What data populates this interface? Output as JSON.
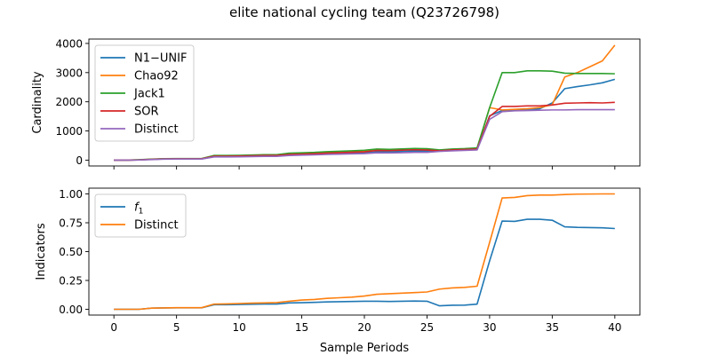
{
  "figure": {
    "title": "elite national cycling team (Q23726798)"
  },
  "chart_data": [
    {
      "type": "line",
      "ylabel": "Cardinality",
      "xlabel": "",
      "xlim": [
        -2,
        42
      ],
      "ylim": [
        -200,
        4150
      ],
      "xticks": [
        0,
        5,
        10,
        15,
        20,
        25,
        30,
        35,
        40
      ],
      "yticks": [
        0,
        1000,
        2000,
        3000,
        4000
      ],
      "ytick_labels": [
        "0",
        "1000",
        "2000",
        "3000",
        "4000"
      ],
      "legend_position": "top-left",
      "x": [
        0,
        1,
        2,
        3,
        4,
        5,
        6,
        7,
        8,
        9,
        10,
        11,
        12,
        13,
        14,
        15,
        16,
        17,
        18,
        19,
        20,
        21,
        22,
        23,
        24,
        25,
        26,
        27,
        28,
        29,
        30,
        31,
        32,
        33,
        34,
        35,
        36,
        37,
        38,
        39,
        40
      ],
      "series": [
        {
          "name": "N1−UNIF",
          "color": "#1f77b4",
          "values": [
            0,
            0,
            5,
            25,
            40,
            40,
            40,
            40,
            120,
            120,
            125,
            135,
            140,
            140,
            180,
            185,
            200,
            215,
            225,
            240,
            250,
            280,
            285,
            300,
            310,
            310,
            320,
            330,
            350,
            360,
            1520,
            1700,
            1720,
            1740,
            1760,
            1960,
            2450,
            2520,
            2580,
            2650,
            2770
          ]
        },
        {
          "name": "Chao92",
          "color": "#ff7f0e",
          "values": [
            0,
            0,
            10,
            30,
            45,
            50,
            50,
            50,
            150,
            150,
            155,
            165,
            175,
            175,
            215,
            225,
            240,
            260,
            275,
            290,
            305,
            350,
            345,
            360,
            380,
            370,
            330,
            360,
            380,
            400,
            1800,
            1720,
            1740,
            1760,
            1800,
            1900,
            2850,
            3000,
            3200,
            3400,
            3940
          ]
        },
        {
          "name": "Jack1",
          "color": "#2ca02c",
          "values": [
            0,
            0,
            15,
            35,
            50,
            55,
            55,
            55,
            160,
            160,
            165,
            175,
            185,
            185,
            240,
            250,
            265,
            290,
            305,
            320,
            340,
            380,
            370,
            385,
            400,
            390,
            350,
            380,
            395,
            420,
            1800,
            3000,
            3000,
            3060,
            3060,
            3050,
            2980,
            2970,
            2970,
            2970,
            2960
          ]
        },
        {
          "name": "SOR",
          "color": "#d62728",
          "values": [
            0,
            0,
            8,
            28,
            42,
            45,
            45,
            45,
            135,
            135,
            140,
            150,
            160,
            160,
            195,
            205,
            220,
            240,
            255,
            270,
            285,
            330,
            325,
            340,
            355,
            345,
            320,
            350,
            365,
            380,
            1500,
            1840,
            1840,
            1860,
            1860,
            1890,
            1950,
            1960,
            1970,
            1960,
            1980
          ]
        },
        {
          "name": "Distinct",
          "color": "#9467bd",
          "values": [
            0,
            0,
            5,
            20,
            35,
            38,
            38,
            38,
            110,
            110,
            115,
            122,
            128,
            128,
            160,
            170,
            180,
            195,
            205,
            215,
            225,
            250,
            245,
            255,
            265,
            265,
            300,
            320,
            335,
            350,
            1400,
            1660,
            1690,
            1700,
            1710,
            1720,
            1720,
            1730,
            1730,
            1730,
            1730
          ]
        }
      ]
    },
    {
      "type": "line",
      "ylabel": "Indicators",
      "xlabel": "Sample Periods",
      "xlim": [
        -2,
        42
      ],
      "ylim": [
        -0.05,
        1.05
      ],
      "xticks": [
        0,
        5,
        10,
        15,
        20,
        25,
        30,
        35,
        40
      ],
      "yticks": [
        0,
        0.25,
        0.5,
        0.75,
        1.0
      ],
      "ytick_labels": [
        "0.00",
        "0.25",
        "0.50",
        "0.75",
        "1.00"
      ],
      "legend_position": "top-left",
      "x": [
        0,
        1,
        2,
        3,
        4,
        5,
        6,
        7,
        8,
        9,
        10,
        11,
        12,
        13,
        14,
        15,
        16,
        17,
        18,
        19,
        20,
        21,
        22,
        23,
        24,
        25,
        26,
        27,
        28,
        29,
        30,
        31,
        32,
        33,
        34,
        35,
        36,
        37,
        38,
        39,
        40
      ],
      "series": [
        {
          "name": "f1",
          "color": "#1f77b4",
          "values": [
            0.0,
            0.0,
            0.0,
            0.01,
            0.012,
            0.013,
            0.013,
            0.013,
            0.04,
            0.04,
            0.042,
            0.044,
            0.046,
            0.046,
            0.055,
            0.057,
            0.06,
            0.064,
            0.066,
            0.068,
            0.07,
            0.07,
            0.068,
            0.07,
            0.072,
            0.07,
            0.03,
            0.035,
            0.036,
            0.045,
            0.42,
            0.765,
            0.762,
            0.78,
            0.78,
            0.772,
            0.715,
            0.71,
            0.708,
            0.706,
            0.7
          ]
        },
        {
          "name": "Distinct",
          "color": "#ff7f0e",
          "values": [
            0.0,
            0.0,
            0.0,
            0.01,
            0.012,
            0.014,
            0.014,
            0.014,
            0.045,
            0.047,
            0.05,
            0.053,
            0.055,
            0.058,
            0.07,
            0.08,
            0.085,
            0.095,
            0.1,
            0.105,
            0.115,
            0.13,
            0.135,
            0.14,
            0.145,
            0.15,
            0.175,
            0.185,
            0.19,
            0.2,
            0.58,
            0.965,
            0.97,
            0.985,
            0.99,
            0.99,
            0.995,
            0.998,
            0.999,
            1.0,
            1.0
          ]
        }
      ]
    }
  ]
}
